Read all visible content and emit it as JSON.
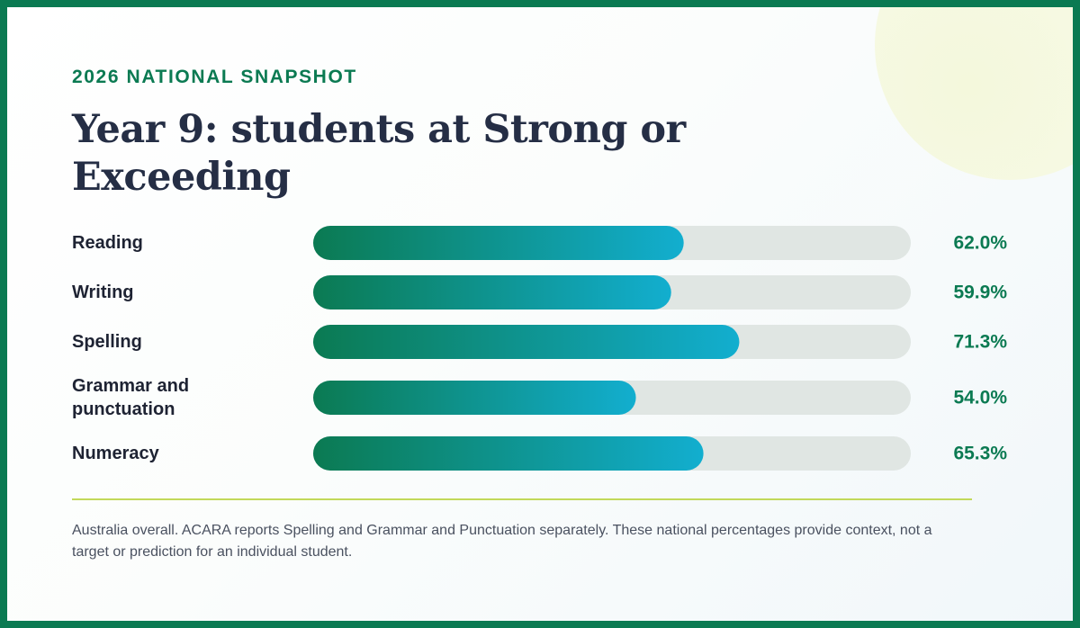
{
  "header": {
    "eyebrow": "2026 NATIONAL SNAPSHOT",
    "title": "Year 9: students at Strong or Exceeding"
  },
  "colors": {
    "frame": "#0b7a52",
    "bar_start": "#0b7a52",
    "bar_end": "#12aecf",
    "track": "#e0e6e3",
    "title": "#252e45",
    "value_text": "#0b7a52",
    "divider": "#c2d95a",
    "deco_circle": "#f5f8df"
  },
  "chart_data": {
    "type": "bar",
    "orientation": "horizontal",
    "title": "Year 9: students at Strong or Exceeding",
    "categories": [
      "Reading",
      "Writing",
      "Spelling",
      "Grammar and punctuation",
      "Numeracy"
    ],
    "category_lines": [
      [
        "Reading"
      ],
      [
        "Writing"
      ],
      [
        "Spelling"
      ],
      [
        "Grammar and",
        "punctuation"
      ],
      [
        "Numeracy"
      ]
    ],
    "values": [
      62.0,
      59.9,
      71.3,
      54.0,
      65.3
    ],
    "value_labels": [
      "62.0%",
      "59.9%",
      "71.3%",
      "54.0%",
      "65.3%"
    ],
    "unit": "%",
    "xlim": [
      0,
      100
    ],
    "grid": false,
    "legend": "none"
  },
  "footnote": "Australia overall. ACARA reports Spelling and Grammar and Punctuation separately. These national percentages provide context, not a target or prediction for an individual student."
}
